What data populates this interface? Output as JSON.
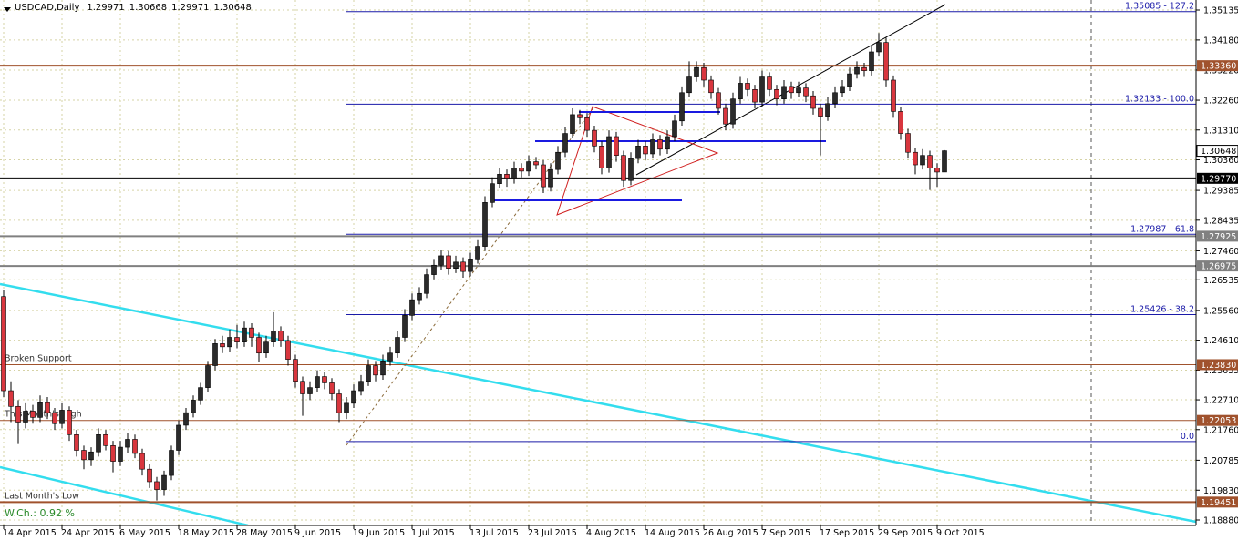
{
  "chart_data": {
    "type": "candlestick",
    "symbol": "USDCAD,Daily",
    "footer": "W.Ch.: 0.92 %",
    "ylim": [
      1.18706,
      1.35454
    ],
    "yticks": [
      1.35135,
      {
        "value": 1.3418,
        "label": "1.34180"
      },
      {
        "value": 1.3322,
        "label": "1.33220"
      },
      {
        "value": 1.3226,
        "label": "1.32260"
      },
      {
        "value": 1.3131,
        "label": "1.31310"
      },
      {
        "value": 1.3036,
        "label": "1.30360"
      },
      1.29385,
      1.28435,
      {
        "value": 1.2746,
        "label": "1.27460"
      },
      1.26535,
      {
        "value": 1.2556,
        "label": "1.25560"
      },
      {
        "value": 1.2461,
        "label": "1.24610"
      },
      1.23655,
      {
        "value": 1.2271,
        "label": "1.22710"
      },
      {
        "value": 1.2176,
        "label": "1.21760"
      },
      1.20785,
      {
        "value": 1.1983,
        "label": "1.19830"
      },
      {
        "value": 1.1888,
        "label": "1.18880"
      }
    ],
    "grid": true,
    "grid_color": "#d6d3a6",
    "bull_color": "#2b2b2b",
    "bear_color": "#d9363e",
    "categories": [
      "14 Apr 2015",
      null,
      null,
      null,
      null,
      null,
      null,
      null,
      "24 Apr 2015",
      null,
      null,
      null,
      null,
      null,
      null,
      null,
      "6 May 2015",
      null,
      null,
      null,
      null,
      null,
      null,
      null,
      "18 May 2015",
      null,
      null,
      null,
      null,
      null,
      null,
      null,
      "28 May 2015",
      null,
      null,
      null,
      null,
      null,
      null,
      null,
      "9 Jun 2015",
      null,
      null,
      null,
      null,
      null,
      null,
      null,
      "19 Jun 2015",
      null,
      null,
      null,
      null,
      null,
      null,
      null,
      "1 Jul 2015",
      null,
      null,
      null,
      null,
      null,
      null,
      null,
      "13 Jul 2015",
      null,
      null,
      null,
      null,
      null,
      null,
      null,
      "23 Jul 2015",
      null,
      null,
      null,
      null,
      null,
      null,
      null,
      "4 Aug 2015",
      null,
      null,
      null,
      null,
      null,
      null,
      null,
      "14 Aug 2015",
      null,
      null,
      null,
      null,
      null,
      null,
      null,
      "26 Aug 2015",
      null,
      null,
      null,
      null,
      null,
      null,
      null,
      "7 Sep 2015",
      null,
      null,
      null,
      null,
      null,
      null,
      null,
      "17 Sep 2015",
      null,
      null,
      null,
      null,
      null,
      null,
      null,
      "29 Sep 2015",
      null,
      null,
      null,
      null,
      null,
      null,
      null,
      "9 Oct 2015",
      null
    ],
    "ohlc": [
      [
        1.26,
        1.262,
        1.228,
        1.23
      ],
      [
        1.23,
        1.233,
        1.22,
        1.225
      ],
      [
        1.225,
        1.227,
        1.213,
        1.22
      ],
      [
        1.22,
        1.226,
        1.218,
        1.2235
      ],
      [
        1.2235,
        1.2255,
        1.2195,
        1.2215
      ],
      [
        1.2215,
        1.2285,
        1.22,
        1.2262
      ],
      [
        1.2262,
        1.228,
        1.221,
        1.223
      ],
      [
        1.223,
        1.2245,
        1.2175,
        1.2195
      ],
      [
        1.2195,
        1.226,
        1.218,
        1.2238
      ],
      [
        1.2238,
        1.225,
        1.214,
        1.216
      ],
      [
        1.216,
        1.2175,
        1.209,
        1.211
      ],
      [
        1.211,
        1.2125,
        1.205,
        1.208
      ],
      [
        1.208,
        1.212,
        1.206,
        1.2105
      ],
      [
        1.2105,
        1.218,
        1.209,
        1.216
      ],
      [
        1.216,
        1.2175,
        1.211,
        1.2125
      ],
      [
        1.2125,
        1.214,
        1.204,
        1.2075
      ],
      [
        1.2075,
        1.214,
        1.206,
        1.212
      ],
      [
        1.212,
        1.2165,
        1.21,
        1.2145
      ],
      [
        1.2145,
        1.216,
        1.2085,
        1.21
      ],
      [
        1.21,
        1.2115,
        1.203,
        1.205
      ],
      [
        1.205,
        1.2065,
        1.199,
        1.201
      ],
      [
        1.201,
        1.2025,
        1.195,
        1.1985
      ],
      [
        1.1985,
        1.2045,
        1.1965,
        1.203
      ],
      [
        1.203,
        1.2125,
        1.2015,
        1.211
      ],
      [
        1.211,
        1.2205,
        1.2095,
        1.219
      ],
      [
        1.219,
        1.2245,
        1.2175,
        1.223
      ],
      [
        1.223,
        1.2285,
        1.2215,
        1.227
      ],
      [
        1.227,
        1.2325,
        1.2255,
        1.231
      ],
      [
        1.231,
        1.2395,
        1.2295,
        1.238
      ],
      [
        1.238,
        1.2465,
        1.2365,
        1.245
      ],
      [
        1.245,
        1.2475,
        1.242,
        1.244
      ],
      [
        1.244,
        1.2495,
        1.2425,
        1.247
      ],
      [
        1.247,
        1.251,
        1.2435,
        1.2455
      ],
      [
        1.2455,
        1.252,
        1.244,
        1.25
      ],
      [
        1.25,
        1.2515,
        1.244,
        1.247
      ],
      [
        1.247,
        1.2485,
        1.239,
        1.242
      ],
      [
        1.242,
        1.2475,
        1.2405,
        1.2455
      ],
      [
        1.2455,
        1.255,
        1.244,
        1.249
      ],
      [
        1.249,
        1.2505,
        1.244,
        1.246
      ],
      [
        1.246,
        1.2475,
        1.238,
        1.24
      ],
      [
        1.24,
        1.2415,
        1.231,
        1.233
      ],
      [
        1.233,
        1.2345,
        1.222,
        1.229
      ],
      [
        1.229,
        1.233,
        1.227,
        1.231
      ],
      [
        1.231,
        1.2365,
        1.2295,
        1.2345
      ],
      [
        1.2345,
        1.236,
        1.2305,
        1.2325
      ],
      [
        1.2325,
        1.234,
        1.227,
        1.229
      ],
      [
        1.229,
        1.2305,
        1.22,
        1.223
      ],
      [
        1.223,
        1.228,
        1.221,
        1.226
      ],
      [
        1.226,
        1.232,
        1.2245,
        1.23
      ],
      [
        1.23,
        1.235,
        1.2285,
        1.233
      ],
      [
        1.233,
        1.24,
        1.2315,
        1.238
      ],
      [
        1.238,
        1.2395,
        1.233,
        1.235
      ],
      [
        1.235,
        1.2415,
        1.2335,
        1.2395
      ],
      [
        1.2395,
        1.244,
        1.238,
        1.242
      ],
      [
        1.242,
        1.249,
        1.2405,
        1.247
      ],
      [
        1.247,
        1.256,
        1.2455,
        1.254
      ],
      [
        1.254,
        1.261,
        1.2525,
        1.259
      ],
      [
        1.259,
        1.263,
        1.2575,
        1.261
      ],
      [
        1.261,
        1.269,
        1.2595,
        1.267
      ],
      [
        1.267,
        1.272,
        1.2655,
        1.27
      ],
      [
        1.27,
        1.275,
        1.2685,
        1.273
      ],
      [
        1.273,
        1.2745,
        1.267,
        1.269
      ],
      [
        1.269,
        1.273,
        1.2675,
        1.271
      ],
      [
        1.271,
        1.2725,
        1.266,
        1.268
      ],
      [
        1.268,
        1.274,
        1.2665,
        1.272
      ],
      [
        1.272,
        1.278,
        1.2705,
        1.276
      ],
      [
        1.276,
        1.292,
        1.2745,
        1.29
      ],
      [
        1.29,
        1.298,
        1.2885,
        1.296
      ],
      [
        1.296,
        1.301,
        1.2945,
        1.299
      ],
      [
        1.299,
        1.3005,
        1.295,
        1.2975
      ],
      [
        1.2975,
        1.303,
        1.296,
        1.301
      ],
      [
        1.301,
        1.3025,
        1.298,
        1.3
      ],
      [
        1.3,
        1.305,
        1.2985,
        1.303
      ],
      [
        1.303,
        1.3045,
        1.3005,
        1.302
      ],
      [
        1.302,
        1.3035,
        1.293,
        1.295
      ],
      [
        1.295,
        1.3025,
        1.2935,
        1.3005
      ],
      [
        1.3005,
        1.308,
        1.299,
        1.306
      ],
      [
        1.306,
        1.314,
        1.3045,
        1.312
      ],
      [
        1.312,
        1.32,
        1.3105,
        1.318
      ],
      [
        1.318,
        1.3195,
        1.315,
        1.317
      ],
      [
        1.317,
        1.3185,
        1.311,
        1.313
      ],
      [
        1.313,
        1.3145,
        1.306,
        1.308
      ],
      [
        1.308,
        1.3095,
        1.299,
        1.301
      ],
      [
        1.301,
        1.313,
        1.2995,
        1.311
      ],
      [
        1.311,
        1.3125,
        1.303,
        1.305
      ],
      [
        1.305,
        1.3065,
        1.295,
        1.297
      ],
      [
        1.297,
        1.306,
        1.2955,
        1.304
      ],
      [
        1.304,
        1.31,
        1.3025,
        1.308
      ],
      [
        1.308,
        1.3095,
        1.3035,
        1.3055
      ],
      [
        1.3055,
        1.312,
        1.304,
        1.31
      ],
      [
        1.31,
        1.3115,
        1.305,
        1.307
      ],
      [
        1.307,
        1.313,
        1.3055,
        1.311
      ],
      [
        1.311,
        1.318,
        1.3095,
        1.316
      ],
      [
        1.316,
        1.327,
        1.3145,
        1.325
      ],
      [
        1.325,
        1.335,
        1.3235,
        1.33
      ],
      [
        1.33,
        1.335,
        1.3285,
        1.333
      ],
      [
        1.333,
        1.3345,
        1.327,
        1.329
      ],
      [
        1.329,
        1.3305,
        1.323,
        1.325
      ],
      [
        1.325,
        1.3265,
        1.318,
        1.32
      ],
      [
        1.32,
        1.3215,
        1.313,
        1.315
      ],
      [
        1.315,
        1.325,
        1.3135,
        1.323
      ],
      [
        1.323,
        1.33,
        1.3215,
        1.328
      ],
      [
        1.328,
        1.3295,
        1.324,
        1.326
      ],
      [
        1.326,
        1.3275,
        1.32,
        1.322
      ],
      [
        1.322,
        1.332,
        1.3205,
        1.33
      ],
      [
        1.33,
        1.3315,
        1.324,
        1.326
      ],
      [
        1.326,
        1.3275,
        1.321,
        1.323
      ],
      [
        1.323,
        1.329,
        1.3215,
        1.327
      ],
      [
        1.327,
        1.3285,
        1.323,
        1.325
      ],
      [
        1.325,
        1.3285,
        1.3235,
        1.3265
      ],
      [
        1.3265,
        1.328,
        1.322,
        1.324
      ],
      [
        1.324,
        1.3255,
        1.318,
        1.32
      ],
      [
        1.32,
        1.3215,
        1.305,
        1.3175
      ],
      [
        1.3175,
        1.3235,
        1.316,
        1.3215
      ],
      [
        1.3215,
        1.327,
        1.32,
        1.325
      ],
      [
        1.325,
        1.329,
        1.3235,
        1.327
      ],
      [
        1.327,
        1.333,
        1.3255,
        1.331
      ],
      [
        1.331,
        1.335,
        1.3295,
        1.333
      ],
      [
        1.333,
        1.3345,
        1.33,
        1.332
      ],
      [
        1.332,
        1.34,
        1.3305,
        1.338
      ],
      [
        1.338,
        1.344,
        1.3365,
        1.341
      ],
      [
        1.341,
        1.3425,
        1.327,
        1.329
      ],
      [
        1.329,
        1.3305,
        1.317,
        1.319
      ],
      [
        1.319,
        1.3205,
        1.31,
        1.312
      ],
      [
        1.312,
        1.3135,
        1.304,
        1.306
      ],
      [
        1.306,
        1.3075,
        1.299,
        1.302
      ],
      [
        1.302,
        1.307,
        1.3005,
        1.305
      ],
      [
        1.305,
        1.3065,
        1.294,
        1.301
      ],
      [
        1.301,
        1.3025,
        1.295,
        1.2997
      ],
      [
        1.29971,
        1.30668,
        1.29971,
        1.30648
      ]
    ],
    "levels": [
      {
        "value": 1.3336,
        "label": "1.33360",
        "color": "#a0522d",
        "width": 2
      },
      {
        "value": 1.2977,
        "label": "1.29770",
        "color": "#000000",
        "width": 2
      },
      {
        "value": 1.27925,
        "label": "1.27925",
        "color": "#808080",
        "width": 2
      },
      {
        "value": 1.26975,
        "label": "1.26975",
        "color": "#808080",
        "width": 2
      },
      {
        "value": 1.2383,
        "label": "1.23830",
        "color": "#a0522d",
        "width": 1,
        "name": "Broken Support"
      },
      {
        "value": 1.22053,
        "label": "1.22053",
        "color": "#a0522d",
        "width": 1,
        "name": "This Month's High"
      },
      {
        "value": 1.19451,
        "label": "1.19451",
        "color": "#a0522d",
        "width": 2,
        "name": "Last Month's Low"
      }
    ],
    "fib_color": "#1a1aa8",
    "fib_levels": [
      {
        "price": 1.35085,
        "label": "1.35085 - 127.2"
      },
      {
        "price": 1.32133,
        "label": "1.32133 - 100.0"
      },
      {
        "price": 1.27987,
        "label": "1.27987 - 61.8"
      },
      {
        "price": 1.25426,
        "label": "1.25426 - 38.2"
      },
      {
        "price": 1.2138,
        "label": "0.0"
      }
    ]
  }
}
